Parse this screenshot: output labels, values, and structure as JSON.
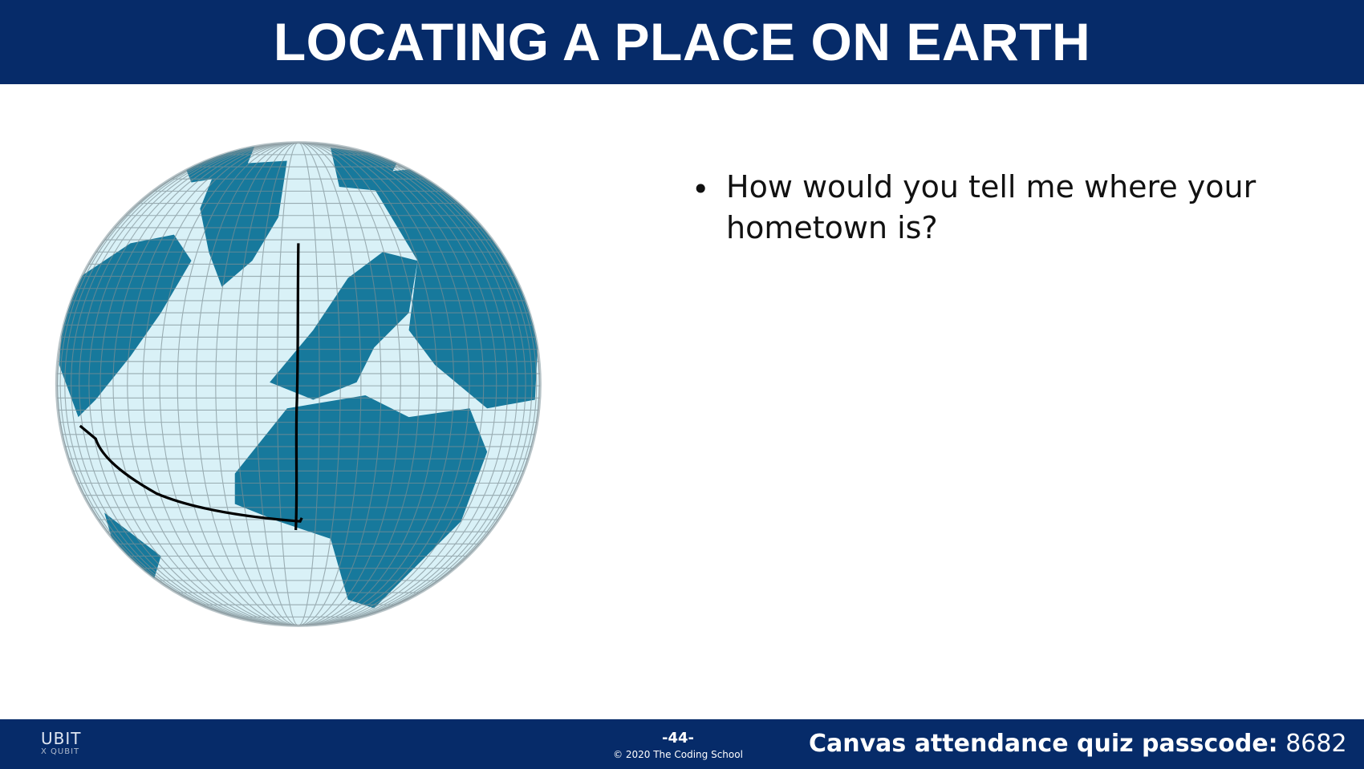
{
  "header": {
    "title": "LOCATING A PLACE ON EARTH"
  },
  "content": {
    "bullets": [
      "How would you tell me where your hometown is?"
    ]
  },
  "footer": {
    "logo": {
      "text": "UBIT",
      "subtext": "X QUBIT"
    },
    "page_number": "-44-",
    "copyright": "© 2020 The Coding School",
    "passcode_label": "Canvas attendance quiz passcode:",
    "passcode": "8682"
  }
}
